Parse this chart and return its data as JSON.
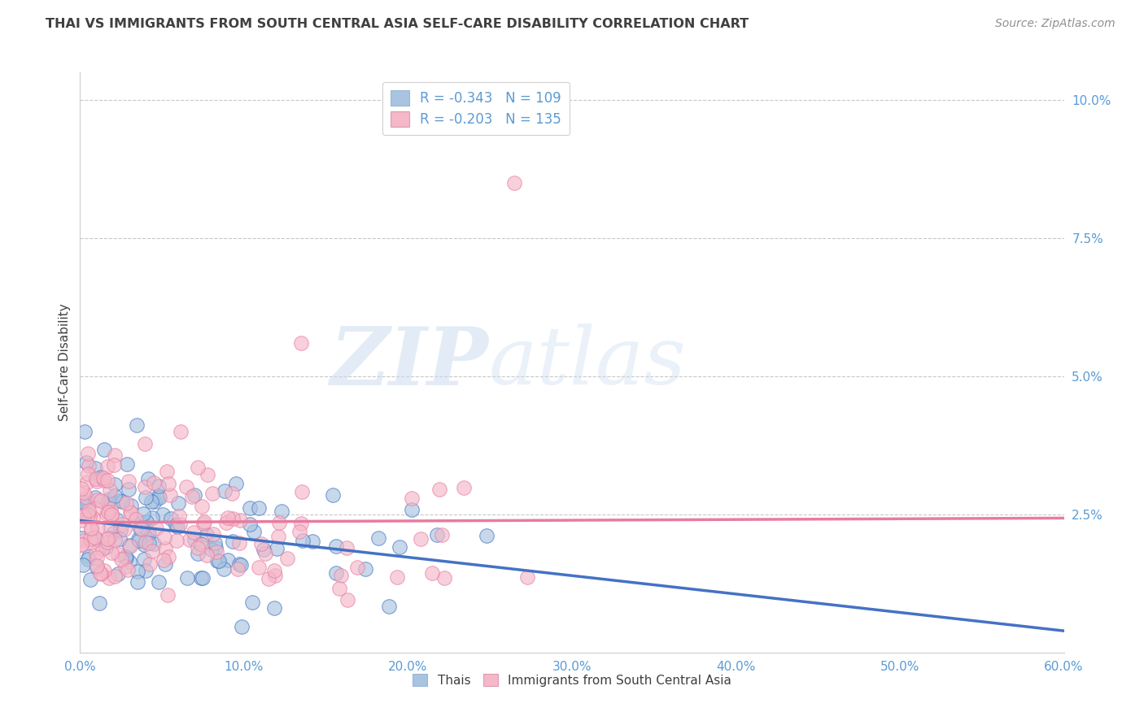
{
  "title": "THAI VS IMMIGRANTS FROM SOUTH CENTRAL ASIA SELF-CARE DISABILITY CORRELATION CHART",
  "source": "Source: ZipAtlas.com",
  "ylabel": "Self-Care Disability",
  "watermark_zip": "ZIP",
  "watermark_atlas": "atlas",
  "legend_label1": "Thais",
  "legend_label2": "Immigrants from South Central Asia",
  "legend_entry1": "R = -0.343   N = 109",
  "legend_entry2": "R = -0.203   N = 135",
  "xlim": [
    0.0,
    0.6
  ],
  "ylim": [
    0.0,
    0.105
  ],
  "xticks": [
    0.0,
    0.1,
    0.2,
    0.3,
    0.4,
    0.5,
    0.6
  ],
  "yticks_right": [
    0.0,
    0.025,
    0.05,
    0.075,
    0.1
  ],
  "yticklabels_right": [
    "",
    "2.5%",
    "5.0%",
    "7.5%",
    "10.0%"
  ],
  "color_blue": "#a8c4e0",
  "color_pink": "#f4b8c8",
  "line_blue": "#4472c4",
  "line_pink": "#e87ba0",
  "title_color": "#404040",
  "source_color": "#909090",
  "axis_color": "#5b9bd5",
  "background_color": "#ffffff",
  "grid_color": "#c8c8c8",
  "R1": -0.343,
  "N1": 109,
  "R2": -0.203,
  "N2": 135
}
